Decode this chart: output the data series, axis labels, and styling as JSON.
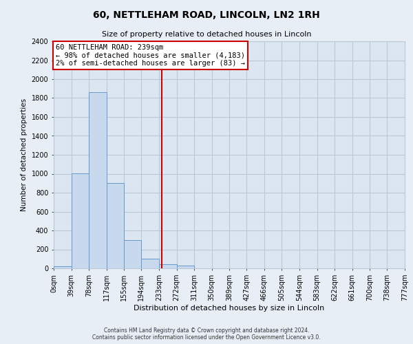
{
  "title": "60, NETTLEHAM ROAD, LINCOLN, LN2 1RH",
  "subtitle": "Size of property relative to detached houses in Lincoln",
  "xlabel": "Distribution of detached houses by size in Lincoln",
  "ylabel": "Number of detached properties",
  "bar_edges": [
    0,
    39,
    78,
    117,
    155,
    194,
    233,
    272,
    311,
    350,
    389,
    427,
    466,
    505,
    544,
    583,
    622,
    661,
    700,
    738,
    777
  ],
  "bar_heights": [
    20,
    1005,
    1860,
    900,
    300,
    100,
    45,
    30,
    0,
    0,
    0,
    0,
    0,
    0,
    0,
    0,
    0,
    0,
    0,
    0
  ],
  "bar_color": "#c8d9ed",
  "bar_edgecolor": "#6699cc",
  "vline_x": 239,
  "vline_color": "#cc0000",
  "ylim": [
    0,
    2400
  ],
  "yticks": [
    0,
    200,
    400,
    600,
    800,
    1000,
    1200,
    1400,
    1600,
    1800,
    2000,
    2200,
    2400
  ],
  "xtick_labels": [
    "0sqm",
    "39sqm",
    "78sqm",
    "117sqm",
    "155sqm",
    "194sqm",
    "233sqm",
    "272sqm",
    "311sqm",
    "350sqm",
    "389sqm",
    "427sqm",
    "466sqm",
    "505sqm",
    "544sqm",
    "583sqm",
    "622sqm",
    "661sqm",
    "700sqm",
    "738sqm",
    "777sqm"
  ],
  "annotation_title": "60 NETTLEHAM ROAD: 239sqm",
  "annotation_line1": "← 98% of detached houses are smaller (4,183)",
  "annotation_line2": "2% of semi-detached houses are larger (83) →",
  "annotation_box_color": "#ffffff",
  "annotation_box_edgecolor": "#cc0000",
  "footnote1": "Contains HM Land Registry data © Crown copyright and database right 2024.",
  "footnote2": "Contains public sector information licensed under the Open Government Licence v3.0.",
  "bg_color": "#e8eef5",
  "plot_bg_color": "#dce6f0",
  "grid_color": "#b8c8d8"
}
